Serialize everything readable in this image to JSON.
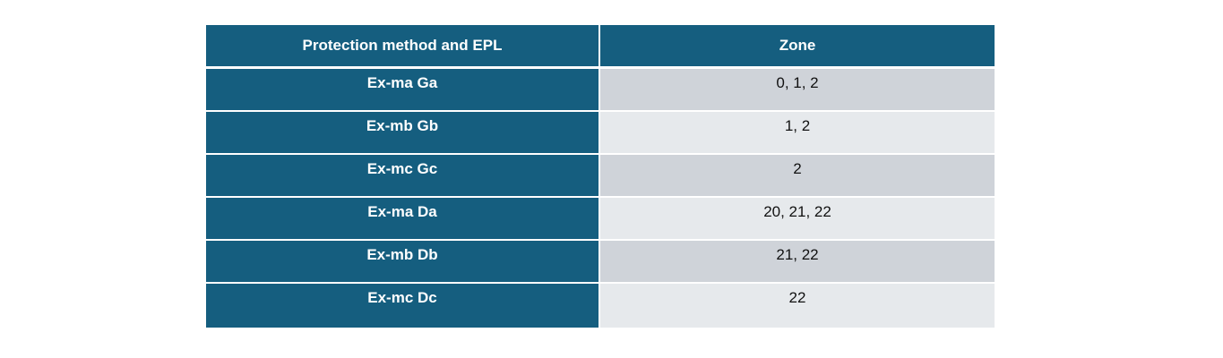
{
  "table": {
    "headers": {
      "method": "Protection method and EPL",
      "zone": "Zone"
    },
    "rows": [
      {
        "method": "Ex-ma Ga",
        "zone": "0, 1, 2"
      },
      {
        "method": "Ex-mb Gb",
        "zone": "1, 2"
      },
      {
        "method": "Ex-mc Gc",
        "zone": "2"
      },
      {
        "method": "Ex-ma Da",
        "zone": "20, 21, 22"
      },
      {
        "method": "Ex-mb Db",
        "zone": "21, 22"
      },
      {
        "method": "Ex-mc Dc",
        "zone": "22"
      }
    ]
  },
  "colors": {
    "header_bg": "#155e7f",
    "zone_bg_dark": "#cfd3d9",
    "zone_bg_light": "#e6e9ec"
  }
}
